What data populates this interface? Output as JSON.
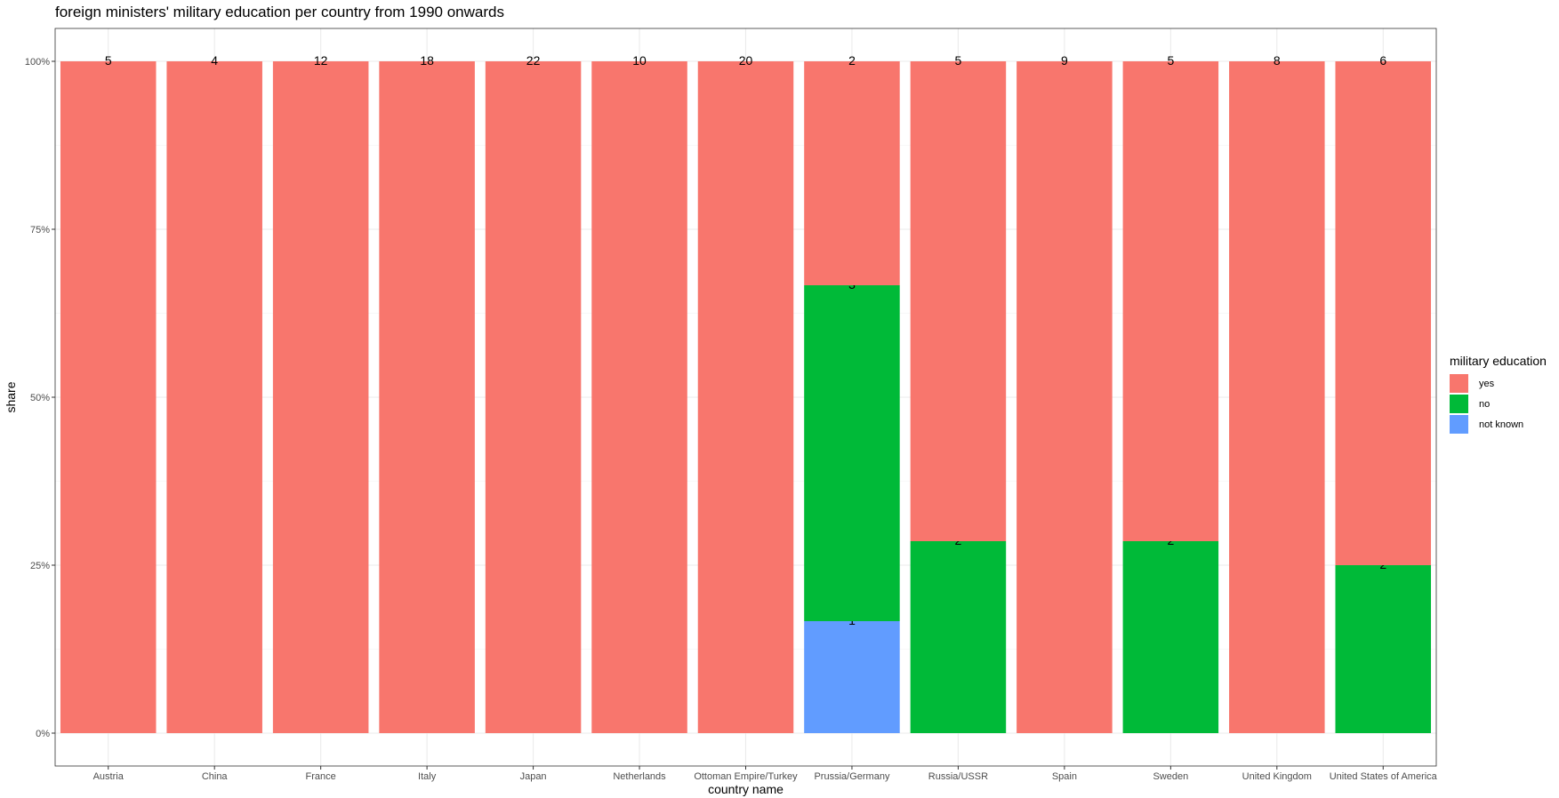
{
  "chart_data": {
    "type": "bar",
    "stacked": "percent",
    "title": "foreign ministers' military education per country from 1990 onwards",
    "xlabel": "country name",
    "ylabel": "share",
    "ylim": [
      0,
      1
    ],
    "yticks": [
      {
        "value": 0,
        "label": "0%"
      },
      {
        "value": 0.25,
        "label": "25%"
      },
      {
        "value": 0.5,
        "label": "50%"
      },
      {
        "value": 0.75,
        "label": "75%"
      },
      {
        "value": 1,
        "label": "100%"
      }
    ],
    "categories": [
      "Austria",
      "China",
      "France",
      "Italy",
      "Japan",
      "Netherlands",
      "Ottoman Empire/Turkey",
      "Prussia/Germany",
      "Russia/USSR",
      "Spain",
      "Sweden",
      "United Kingdom",
      "United States of America"
    ],
    "series": [
      {
        "name": "yes",
        "color": "#F8766D",
        "values": [
          5,
          4,
          12,
          18,
          22,
          10,
          20,
          2,
          5,
          9,
          5,
          8,
          6
        ]
      },
      {
        "name": "no",
        "color": "#00BA38",
        "values": [
          0,
          0,
          0,
          0,
          0,
          0,
          0,
          3,
          2,
          0,
          2,
          0,
          2
        ]
      },
      {
        "name": "not known",
        "color": "#619CFF",
        "values": [
          0,
          0,
          0,
          0,
          0,
          0,
          0,
          1,
          0,
          0,
          0,
          0,
          0
        ]
      }
    ],
    "legend": {
      "title": "military education",
      "position": "right"
    },
    "grid": true
  }
}
